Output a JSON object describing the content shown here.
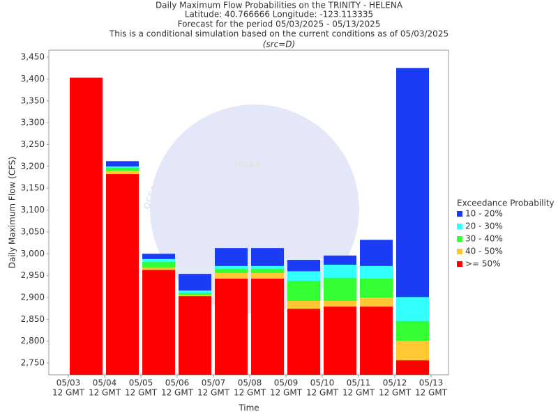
{
  "chart_data": {
    "type": "overlap_bar",
    "title": "Daily Maximum Flow Probabilities on the TRINITY - HELENA",
    "subtitle_lines": [
      "Latitude: 40.766666 Longitude: -123.113335",
      "Forecast for the period 05/03/2025 - 05/13/2025",
      "This is a conditional simulation based on the current conditions as of 05/03/2025"
    ],
    "source_note": "(src=D)",
    "y_label": "Daily Maximum Flow (CFS)",
    "x_label": "Time",
    "legend_title": "Exceedance Probability",
    "watermark": {
      "logo": "NOAA",
      "ring": "OCEANIC AND ATMOSPHERIC ADMINISTRATION"
    },
    "x_labels": [
      "05/03",
      "05/04",
      "05/05",
      "05/06",
      "05/07",
      "05/08",
      "05/09",
      "05/10",
      "05/11",
      "05/12",
      "05/13"
    ],
    "time_label": "12 GMT",
    "ylim": [
      2723,
      3466
    ],
    "yticks": [
      {
        "value": 2750,
        "label": "2,750"
      },
      {
        "value": 2800,
        "label": "2,800"
      },
      {
        "value": 2850,
        "label": "2,850"
      },
      {
        "value": 2900,
        "label": "2,900"
      },
      {
        "value": 2950,
        "label": "2,950"
      },
      {
        "value": 3000,
        "label": "3,000"
      },
      {
        "value": 3050,
        "label": "3,050"
      },
      {
        "value": 3100,
        "label": "3,100"
      },
      {
        "value": 3150,
        "label": "3,150"
      },
      {
        "value": 3200,
        "label": "3,200"
      },
      {
        "value": 3250,
        "label": "3,250"
      },
      {
        "value": 3300,
        "label": "3,300"
      },
      {
        "value": 3350,
        "label": "3,350"
      },
      {
        "value": 3400,
        "label": "3,400"
      },
      {
        "value": 3450,
        "label": "3,450"
      }
    ],
    "grid": false,
    "series": [
      {
        "name": "10 - 20%",
        "color": "#1a3cf5",
        "values": [
          3403,
          3212,
          3000,
          2954,
          3013,
          3013,
          2986,
          2996,
          3032,
          3425
        ]
      },
      {
        "name": "20 - 30%",
        "color": "#33ffff",
        "values": [
          3403,
          3200,
          2988,
          2916,
          2972,
          2972,
          2960,
          2975,
          2972,
          2901
        ]
      },
      {
        "name": "30 - 40%",
        "color": "#33ff33",
        "values": [
          3403,
          3197,
          2981,
          2910,
          2965,
          2965,
          2938,
          2945,
          2943,
          2846
        ]
      },
      {
        "name": "40 - 50%",
        "color": "#ffc733",
        "values": [
          3403,
          3190,
          2968,
          2906,
          2956,
          2956,
          2892,
          2892,
          2900,
          2801
        ]
      },
      {
        "name": ">= 50%",
        "color": "#ff0000",
        "values": [
          3403,
          3182,
          2963,
          2903,
          2943,
          2943,
          2874,
          2879,
          2879,
          2756
        ]
      }
    ]
  }
}
